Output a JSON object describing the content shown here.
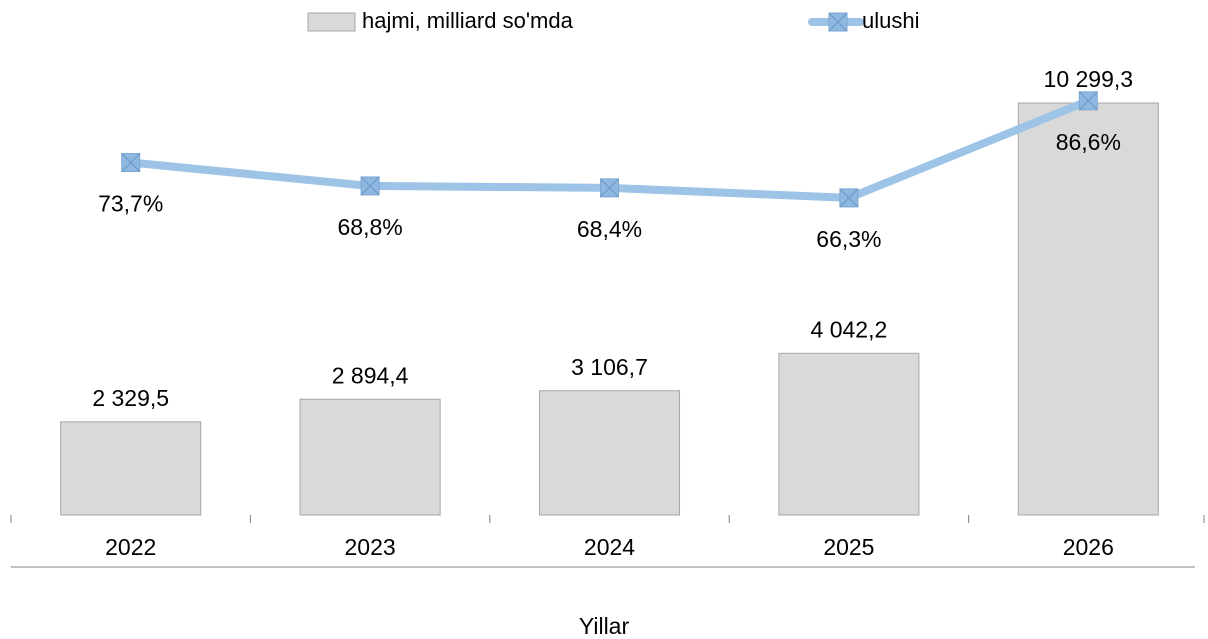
{
  "chart_data": {
    "type": "bar-line",
    "categories": [
      "2022",
      "2023",
      "2024",
      "2025",
      "2026"
    ],
    "series": [
      {
        "name": "hajmi, milliard so'mda",
        "type": "bar",
        "color": "#d9d9d9",
        "edge_color": "#a6a6a6",
        "values": [
          2329.5,
          2894.4,
          3106.7,
          4042.2,
          10299.3
        ],
        "value_labels": [
          "2 329,5",
          "2 894,4",
          "3 106,7",
          "4 042,2",
          "10 299,3"
        ]
      },
      {
        "name": "ulushi",
        "type": "line",
        "axis": "y2",
        "color": "#9dc3e6",
        "marker_color": "#8fb8e0",
        "values": [
          73.7,
          68.8,
          68.4,
          66.3,
          86.6
        ],
        "value_labels": [
          "73,7%",
          "68,8%",
          "68,4%",
          "66,3%",
          "86,6%"
        ]
      }
    ],
    "xlabel": "Yillar",
    "ylim": [
      0,
      11000
    ],
    "y2lim": [
      0,
      92
    ],
    "legend": "top"
  }
}
